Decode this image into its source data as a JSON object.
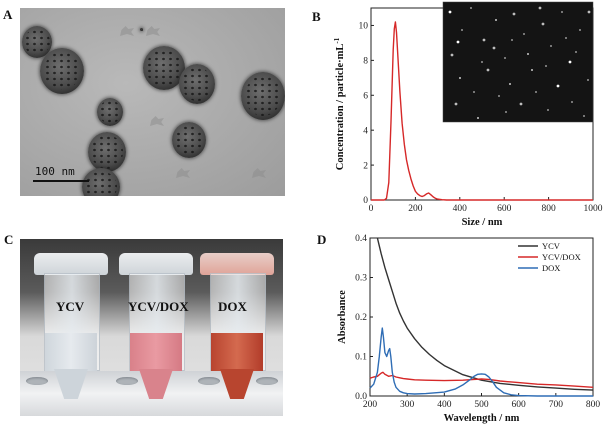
{
  "panels": {
    "a": {
      "letter": "A",
      "scale_bar_label": "100 nm"
    },
    "b": {
      "letter": "B"
    },
    "c": {
      "letter": "C",
      "tube_labels": [
        "YCV",
        "YCV/DOX",
        "DOX"
      ]
    },
    "d": {
      "letter": "D"
    }
  },
  "colors": {
    "red": "#d62828",
    "black": "#333333",
    "blue": "#2f6db5"
  },
  "chart_data": [
    {
      "id": "B",
      "type": "line",
      "xlabel": "Size / nm",
      "ylabel": "Concentration / particle·mL",
      "ylabel_sup": "-1",
      "xlim": [
        0,
        1000
      ],
      "ylim": [
        0,
        11
      ],
      "xticks": [
        0,
        200,
        400,
        600,
        800,
        1000
      ],
      "yticks": [
        0,
        2,
        4,
        6,
        8,
        10
      ],
      "grid": false,
      "inset": "dark nanoparticle tracking image, top-right",
      "series": [
        {
          "color": "#d62828",
          "x": [
            0,
            40,
            60,
            70,
            80,
            90,
            100,
            105,
            110,
            115,
            120,
            130,
            140,
            150,
            160,
            170,
            180,
            190,
            200,
            210,
            220,
            230,
            240,
            250,
            260,
            270,
            280,
            290,
            300,
            320,
            340,
            360,
            400,
            500,
            600,
            800,
            1000
          ],
          "y": [
            0,
            0,
            0,
            0.1,
            1.0,
            4.5,
            8.6,
            9.8,
            10.2,
            9.6,
            8.5,
            6.2,
            4.4,
            3.2,
            2.3,
            1.7,
            1.2,
            0.8,
            0.5,
            0.35,
            0.25,
            0.2,
            0.25,
            0.35,
            0.4,
            0.3,
            0.18,
            0.1,
            0.05,
            0.02,
            0,
            0,
            0,
            0,
            0,
            0,
            0
          ]
        }
      ]
    },
    {
      "id": "D",
      "type": "line",
      "xlabel": "Wavelength / nm",
      "ylabel": "Absorbance",
      "xlim": [
        200,
        800
      ],
      "ylim": [
        0,
        0.4
      ],
      "xticks": [
        200,
        300,
        400,
        500,
        600,
        700,
        800
      ],
      "yticks": [
        0.0,
        0.1,
        0.2,
        0.3,
        0.4
      ],
      "grid": false,
      "legend": "top-right",
      "series": [
        {
          "name": "YCV",
          "color": "#333333",
          "x": [
            220,
            225,
            230,
            240,
            250,
            260,
            270,
            280,
            290,
            300,
            320,
            340,
            360,
            380,
            400,
            450,
            500,
            550,
            600,
            650,
            700,
            750,
            800
          ],
          "y": [
            0.4,
            0.38,
            0.36,
            0.325,
            0.295,
            0.265,
            0.235,
            0.21,
            0.19,
            0.172,
            0.145,
            0.123,
            0.105,
            0.09,
            0.077,
            0.054,
            0.04,
            0.032,
            0.027,
            0.023,
            0.02,
            0.017,
            0.015
          ]
        },
        {
          "name": "YCV/DOX",
          "color": "#d62828",
          "x": [
            200,
            210,
            220,
            230,
            235,
            240,
            250,
            260,
            270,
            280,
            290,
            300,
            320,
            350,
            400,
            450,
            480,
            500,
            520,
            550,
            600,
            650,
            700,
            750,
            800
          ],
          "y": [
            0.045,
            0.048,
            0.05,
            0.058,
            0.06,
            0.055,
            0.05,
            0.052,
            0.048,
            0.046,
            0.044,
            0.043,
            0.041,
            0.04,
            0.039,
            0.04,
            0.042,
            0.043,
            0.042,
            0.038,
            0.034,
            0.03,
            0.028,
            0.025,
            0.022
          ]
        },
        {
          "name": "DOX",
          "color": "#2f6db5",
          "x": [
            200,
            210,
            220,
            225,
            230,
            233,
            236,
            240,
            245,
            250,
            253,
            256,
            260,
            265,
            270,
            280,
            290,
            300,
            320,
            350,
            400,
            430,
            450,
            470,
            480,
            490,
            500,
            510,
            520,
            530,
            540,
            560,
            580,
            600,
            650,
            700,
            800
          ],
          "y": [
            0.02,
            0.03,
            0.06,
            0.1,
            0.15,
            0.172,
            0.15,
            0.11,
            0.1,
            0.115,
            0.12,
            0.1,
            0.06,
            0.035,
            0.022,
            0.012,
            0.008,
            0.006,
            0.005,
            0.006,
            0.01,
            0.018,
            0.028,
            0.042,
            0.05,
            0.055,
            0.056,
            0.055,
            0.048,
            0.036,
            0.022,
            0.008,
            0.003,
            0.001,
            0,
            0,
            0
          ]
        }
      ]
    }
  ]
}
